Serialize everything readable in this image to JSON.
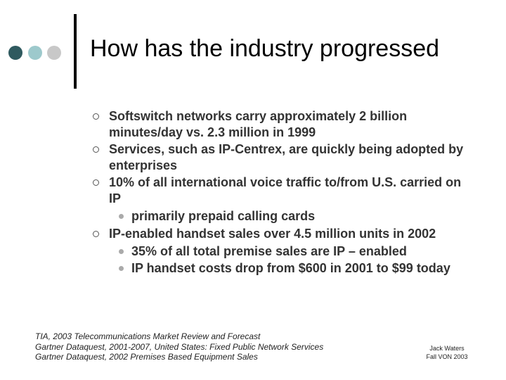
{
  "title": "How has the industry progressed",
  "bullets": [
    {
      "text": "Softswitch networks carry approximately 2 billion minutes/day vs. 2.3 million in 1999",
      "sub": []
    },
    {
      "text": "Services, such as IP-Centrex, are quickly being adopted by enterprises",
      "sub": []
    },
    {
      "text": "10% of all international voice traffic to/from U.S. carried on IP",
      "sub": [
        "primarily prepaid calling cards"
      ]
    },
    {
      "text": "IP-enabled handset sales over 4.5 million units in 2002",
      "sub": [
        "35% of all total premise sales are IP – enabled",
        "IP handset costs drop from $600 in 2001 to $99 today"
      ]
    }
  ],
  "sources": [
    "TIA, 2003 Telecommunications Market Review and Forecast",
    "Gartner Dataquest, 2001-2007, United States: Fixed Public Network Services",
    "Gartner Dataquest, 2002 Premises Based Equipment Sales"
  ],
  "credit": {
    "name": "Jack Waters",
    "event": "Fall VON 2003"
  },
  "colors": {
    "dot_dark": "#2f5a5f",
    "dot_mid": "#9dc9cc",
    "dot_light": "#c8c8c8",
    "body_text": "#333333"
  }
}
